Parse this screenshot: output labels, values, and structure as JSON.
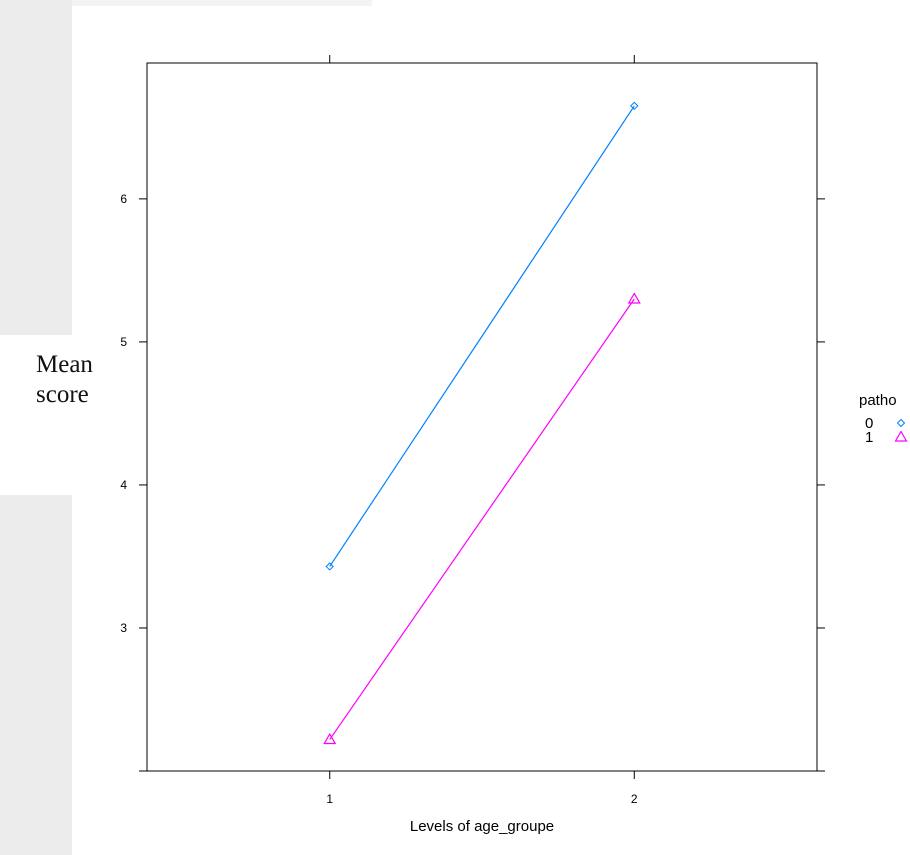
{
  "chart_data": {
    "type": "line",
    "title": "",
    "xlabel": "Levels of age_groupe",
    "ylabel": "Mean score",
    "x": [
      "1",
      "2"
    ],
    "xlim": [
      0.4,
      2.6
    ],
    "ylim": [
      2.0,
      6.95
    ],
    "y_ticks": [
      3,
      4,
      5,
      6
    ],
    "y_tick_labels": [
      "3",
      "4",
      "5",
      "6"
    ],
    "x_tick_labels": [
      "1",
      "2"
    ],
    "grid": false,
    "legend": {
      "title": "patho",
      "placement": "right",
      "entries": [
        {
          "label": "0",
          "marker": "diamond",
          "color": "#0080ff"
        },
        {
          "label": "1",
          "marker": "triangle",
          "color": "#ff00ff"
        }
      ]
    },
    "series": [
      {
        "name": "0",
        "values": [
          3.43,
          6.65
        ],
        "color": "#0080ff",
        "marker": "diamond"
      },
      {
        "name": "1",
        "values": [
          2.22,
          5.3
        ],
        "color": "#ff00ff",
        "marker": "triangle"
      }
    ]
  }
}
